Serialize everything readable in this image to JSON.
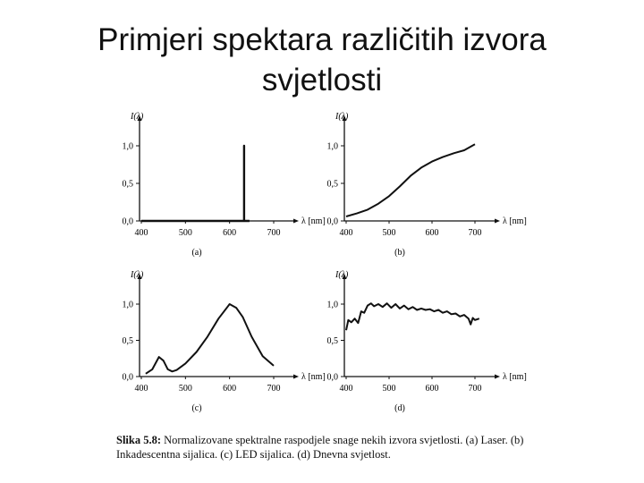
{
  "slide": {
    "title_line1": "Primjeri spektara različitih izvora",
    "title_line2": "svjetlosti"
  },
  "caption": {
    "label": "Slika 5.8:",
    "text": "Normalizovane spektralne raspodjele snage nekih izvora svjetlosti. (a) Laser. (b) Inkadescentna sijalica. (c) LED sijalica. (d) Dnevna svjetlost."
  },
  "chart_data": [
    {
      "type": "line",
      "panel_label": "(a)",
      "ylabel": "I(λ)",
      "xlabel": "λ [nm]",
      "xticks": [
        "400",
        "500",
        "600",
        "700"
      ],
      "yticks": [
        "0,0",
        "0,5",
        "1,0"
      ],
      "xlim": [
        400,
        700
      ],
      "ylim": [
        0,
        1.0
      ],
      "x": [
        400,
        633,
        633,
        633,
        633,
        633,
        645
      ],
      "y": [
        0,
        0,
        1.0,
        0,
        0,
        0,
        0
      ]
    },
    {
      "type": "line",
      "panel_label": "(b)",
      "ylabel": "I(λ)",
      "xlabel": "λ [nm]",
      "xticks": [
        "400",
        "500",
        "600",
        "700"
      ],
      "yticks": [
        "0,0",
        "0,5",
        "1,0"
      ],
      "xlim": [
        400,
        700
      ],
      "ylim": [
        0,
        1.0
      ],
      "x": [
        400,
        425,
        450,
        475,
        500,
        525,
        550,
        575,
        600,
        625,
        650,
        675,
        700
      ],
      "y": [
        0.06,
        0.1,
        0.15,
        0.23,
        0.33,
        0.46,
        0.6,
        0.71,
        0.79,
        0.85,
        0.9,
        0.94,
        1.02
      ]
    },
    {
      "type": "line",
      "panel_label": "(c)",
      "ylabel": "I(λ)",
      "xlabel": "λ [nm]",
      "xticks": [
        "400",
        "500",
        "600",
        "700"
      ],
      "yticks": [
        "0,0",
        "0,5",
        "1,0"
      ],
      "xlim": [
        400,
        700
      ],
      "ylim": [
        0,
        1.0
      ],
      "x": [
        410,
        425,
        440,
        450,
        460,
        470,
        480,
        500,
        525,
        550,
        575,
        600,
        615,
        630,
        650,
        675,
        700
      ],
      "y": [
        0.04,
        0.1,
        0.27,
        0.22,
        0.1,
        0.07,
        0.09,
        0.18,
        0.34,
        0.55,
        0.8,
        1.0,
        0.95,
        0.82,
        0.55,
        0.28,
        0.15
      ]
    },
    {
      "type": "line",
      "panel_label": "(d)",
      "ylabel": "I(λ)",
      "xlabel": "λ [nm]",
      "xticks": [
        "400",
        "500",
        "600",
        "700"
      ],
      "yticks": [
        "0,0",
        "0,5",
        "1,0"
      ],
      "xlim": [
        400,
        700
      ],
      "ylim": [
        0,
        1.0
      ],
      "x": [
        400,
        405,
        412,
        420,
        428,
        435,
        442,
        450,
        458,
        465,
        475,
        485,
        495,
        505,
        515,
        525,
        535,
        545,
        555,
        565,
        575,
        585,
        595,
        605,
        615,
        625,
        635,
        645,
        655,
        665,
        675,
        685,
        690,
        695,
        700,
        710
      ],
      "y": [
        0.64,
        0.78,
        0.75,
        0.8,
        0.74,
        0.9,
        0.88,
        0.98,
        1.01,
        0.97,
        1.0,
        0.96,
        1.01,
        0.95,
        1.0,
        0.94,
        0.98,
        0.93,
        0.96,
        0.92,
        0.94,
        0.92,
        0.93,
        0.9,
        0.92,
        0.88,
        0.9,
        0.86,
        0.87,
        0.83,
        0.85,
        0.8,
        0.72,
        0.81,
        0.78,
        0.8
      ]
    }
  ]
}
